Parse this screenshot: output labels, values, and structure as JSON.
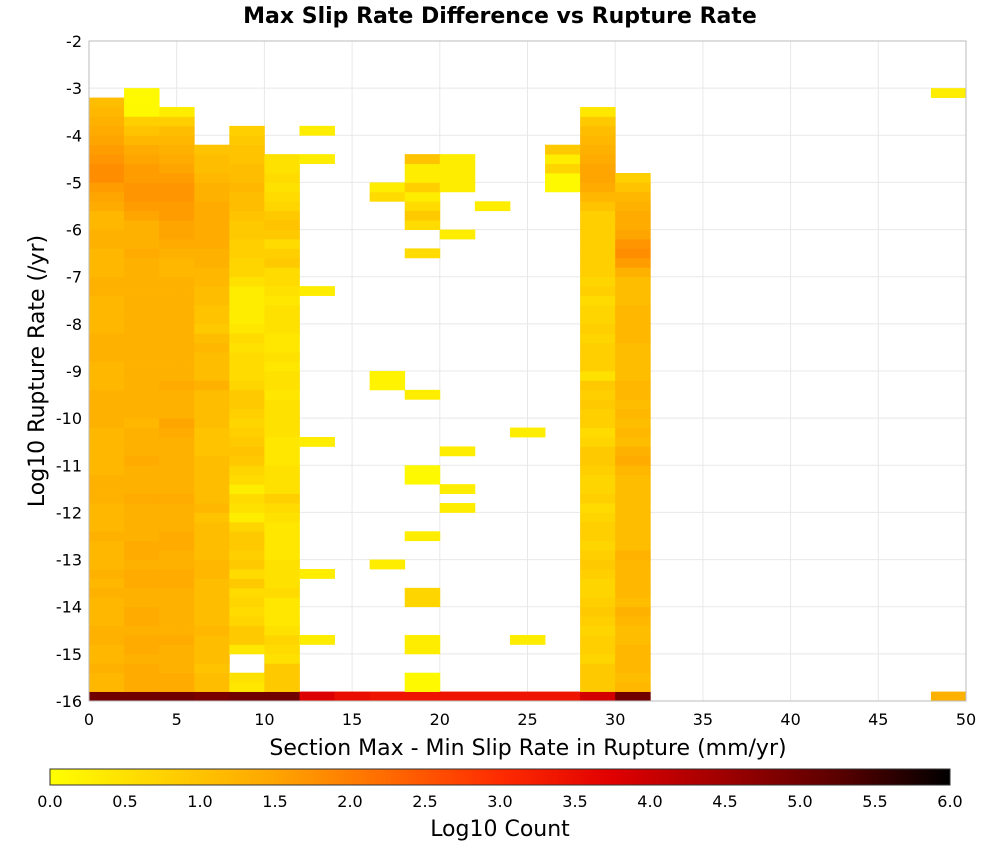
{
  "chart_data": {
    "type": "heatmap",
    "title": "Max Slip Rate Difference vs Rupture Rate",
    "xlabel": "Section Max - Min Slip Rate in Rupture (mm/yr)",
    "ylabel": "Log10 Rupture Rate (/yr)",
    "xlim": [
      0,
      50
    ],
    "ylim": [
      -16,
      -2
    ],
    "x_ticks": [
      0,
      5,
      10,
      15,
      20,
      25,
      30,
      35,
      40,
      45,
      50
    ],
    "y_ticks": [
      -2,
      -3,
      -4,
      -5,
      -6,
      -7,
      -8,
      -9,
      -10,
      -11,
      -12,
      -13,
      -14,
      -15,
      -16
    ],
    "grid": true,
    "bin_size_x": 2,
    "bin_size_y": 0.2,
    "colorbar": {
      "label": "Log10 Count",
      "range": [
        0,
        6
      ],
      "ticks": [
        "0.0",
        "0.5",
        "1.0",
        "1.5",
        "2.0",
        "2.5",
        "3.0",
        "3.5",
        "4.0",
        "4.5",
        "5.0",
        "5.5",
        "6.0"
      ],
      "colors": [
        "#ffff00",
        "#ffd200",
        "#ffa500",
        "#ff6a00",
        "#ff2b00",
        "#e00000",
        "#9e0000",
        "#5a0000",
        "#000000"
      ]
    },
    "columns": [
      {
        "x": 0,
        "ymin": -16,
        "values": [
          5.0,
          1.2,
          1.2,
          1.3,
          1.2,
          1.2,
          1.3,
          1.3,
          1.2,
          1.2,
          1.2,
          1.3,
          1.2,
          1.3,
          1.2,
          1.2,
          1.2,
          1.3,
          1.2,
          1.2,
          1.2,
          1.3,
          1.3,
          1.3,
          1.2,
          1.2,
          1.2,
          1.2,
          1.2,
          1.3,
          1.3,
          1.3,
          1.3,
          1.2,
          1.2,
          1.2,
          1.3,
          1.3,
          1.3,
          1.2,
          1.2,
          1.2,
          1.2,
          1.3,
          1.3,
          1.2,
          1.2,
          1.2,
          1.3,
          1.3,
          1.2,
          1.2,
          1.4,
          1.5,
          1.6,
          1.8,
          1.8,
          1.7,
          1.6,
          1.5,
          1.4,
          1.3,
          1.2,
          1.1
        ]
      },
      {
        "x": 2,
        "ymin": -16,
        "values": [
          5.0,
          1.4,
          1.4,
          1.4,
          1.3,
          1.4,
          1.4,
          1.3,
          1.4,
          1.4,
          1.3,
          1.3,
          1.4,
          1.4,
          1.3,
          1.4,
          1.4,
          1.3,
          1.3,
          1.3,
          1.3,
          1.4,
          1.3,
          1.3,
          1.3,
          1.4,
          1.3,
          1.3,
          1.3,
          1.2,
          1.3,
          1.3,
          1.3,
          1.3,
          1.3,
          1.3,
          1.3,
          1.3,
          1.3,
          1.3,
          1.3,
          1.3,
          1.3,
          1.3,
          1.3,
          1.3,
          1.3,
          1.4,
          1.3,
          1.3,
          1.3,
          1.5,
          1.6,
          1.7,
          1.7,
          1.6,
          1.6,
          1.5,
          1.4,
          1.2,
          1.0,
          0.8,
          0.1,
          0.1,
          0.1
        ]
      },
      {
        "x": 4,
        "ymin": -16,
        "values": [
          5.0,
          1.4,
          1.4,
          1.3,
          1.3,
          1.3,
          1.4,
          1.3,
          1.3,
          1.3,
          1.3,
          1.3,
          1.4,
          1.4,
          1.3,
          1.3,
          1.4,
          1.4,
          1.3,
          1.3,
          1.3,
          1.4,
          1.3,
          1.3,
          1.3,
          1.3,
          1.3,
          1.3,
          1.4,
          1.5,
          1.3,
          1.3,
          1.3,
          1.4,
          1.3,
          1.3,
          1.3,
          1.3,
          1.3,
          1.3,
          1.3,
          1.3,
          1.3,
          1.3,
          1.3,
          1.2,
          1.2,
          1.3,
          1.4,
          1.5,
          1.5,
          1.6,
          1.6,
          1.7,
          1.7,
          1.6,
          1.5,
          1.4,
          1.3,
          1.2,
          1.1,
          0.8,
          0.3
        ]
      },
      {
        "x": 6,
        "ymin": -16,
        "values": [
          4.9,
          1.1,
          1.1,
          1.0,
          1.1,
          1.1,
          1.1,
          1.2,
          1.1,
          1.1,
          1.1,
          1.1,
          1.1,
          1.2,
          1.2,
          1.1,
          1.1,
          1.1,
          1.1,
          1.0,
          1.2,
          1.1,
          1.1,
          1.1,
          1.1,
          1.1,
          1.0,
          1.0,
          1.0,
          1.1,
          1.1,
          1.1,
          1.1,
          1.3,
          1.1,
          1.1,
          1.1,
          1.2,
          1.1,
          0.9,
          1.0,
          1.0,
          1.1,
          1.1,
          1.2,
          1.2,
          1.3,
          1.3,
          1.4,
          1.4,
          1.4,
          1.4,
          1.4,
          1.3,
          1.3,
          1.2,
          1.1,
          1.1,
          1.0
        ]
      },
      {
        "x": 8,
        "ymin": -16,
        "values": [
          5.0,
          0.4,
          0.5,
          -1,
          -1,
          0.4,
          0.9,
          0.9,
          0.7,
          0.6,
          0.7,
          0.6,
          0.9,
          0.6,
          0.9,
          0.8,
          0.9,
          0.9,
          0.7,
          0.3,
          0.5,
          0.6,
          0.3,
          0.6,
          0.7,
          0.9,
          1.0,
          0.9,
          0.8,
          0.7,
          0.8,
          0.9,
          0.9,
          0.7,
          0.6,
          0.6,
          0.6,
          0.5,
          0.6,
          0.4,
          0.3,
          0.3,
          0.3,
          0.3,
          0.5,
          0.7,
          0.7,
          0.8,
          0.8,
          0.9,
          0.9,
          1.0,
          1.1,
          1.1,
          1.2,
          1.1,
          1.1,
          1.0,
          1.0,
          0.9,
          0.8
        ]
      },
      {
        "x": 10,
        "ymin": -16,
        "values": [
          5.0,
          0.9,
          0.9,
          0.9,
          0.5,
          0.6,
          0.7,
          0.5,
          0.4,
          0.4,
          0.4,
          0.6,
          0.5,
          0.5,
          0.5,
          0.4,
          0.4,
          0.4,
          0.4,
          0.5,
          0.6,
          0.8,
          0.5,
          0.5,
          0.5,
          0.4,
          0.4,
          0.4,
          0.5,
          0.5,
          0.5,
          0.5,
          0.4,
          0.5,
          0.5,
          0.4,
          0.5,
          0.4,
          0.4,
          0.5,
          0.5,
          0.5,
          0.4,
          0.5,
          0.6,
          0.6,
          0.9,
          0.8,
          0.6,
          0.9,
          1.0,
          0.9,
          0.7,
          0.6,
          0.5,
          0.6,
          0.5,
          0.5
        ]
      },
      {
        "x": 12,
        "ymin": -16,
        "values": [
          3.8,
          -1,
          -1,
          -1,
          -1,
          -1,
          0.3,
          -1,
          -1,
          -1,
          -1,
          -1,
          -1,
          0.3,
          -1,
          -1,
          -1,
          -1,
          -1,
          -1,
          -1,
          -1,
          -1,
          -1,
          -1,
          -1,
          -1,
          0.3,
          -1,
          -1,
          -1,
          -1,
          -1,
          -1,
          -1,
          -1,
          -1,
          -1,
          -1,
          -1,
          -1,
          -1,
          -1,
          0.3,
          -1,
          -1,
          -1,
          -1,
          -1,
          -1,
          -1,
          -1,
          -1,
          -1,
          -1,
          -1,
          -1,
          0.3,
          -1,
          -1,
          0.3
        ]
      },
      {
        "x": 14,
        "ymin": -16,
        "values": [
          3.5
        ]
      },
      {
        "x": 16,
        "ymin": -16,
        "values": [
          3.4,
          -1,
          -1,
          -1,
          -1,
          -1,
          -1,
          -1,
          -1,
          -1,
          -1,
          -1,
          -1,
          -1,
          0.3,
          -1,
          -1,
          -1,
          -1,
          -1,
          -1,
          -1,
          -1,
          -1,
          -1,
          -1,
          -1,
          -1,
          -1,
          -1,
          -1,
          -1,
          -1,
          0.2,
          0.2,
          -1,
          -1,
          -1,
          -1,
          -1,
          -1,
          -1,
          -1,
          -1,
          -1,
          -1,
          -1,
          -1,
          -1,
          -1,
          -1,
          -1,
          -1,
          0.6,
          0.3
        ]
      },
      {
        "x": 18,
        "ymin": -16,
        "values": [
          3.4,
          0.1,
          0.1,
          -1,
          -1,
          0.3,
          0.3,
          -1,
          -1,
          -1,
          0.7,
          0.7,
          -1,
          -1,
          -1,
          -1,
          -1,
          0.3,
          -1,
          -1,
          -1,
          -1,
          -1,
          0.1,
          0.1,
          -1,
          -1,
          -1,
          -1,
          -1,
          -1,
          -1,
          0.3,
          -1,
          -1,
          -1,
          -1,
          -1,
          -1,
          -1,
          -1,
          -1,
          -1,
          -1,
          -1,
          -1,
          -1,
          0.6,
          -1,
          -1,
          0.6,
          0.9,
          0.6,
          0.3,
          0.8,
          0.3,
          0.3,
          1.0
        ]
      },
      {
        "x": 20,
        "ymin": -16,
        "values": [
          3.4,
          -1,
          -1,
          -1,
          -1,
          -1,
          -1,
          -1,
          -1,
          -1,
          -1,
          -1,
          -1,
          -1,
          -1,
          -1,
          -1,
          -1,
          -1,
          -1,
          0.3,
          -1,
          0.3,
          -1,
          -1,
          -1,
          0.3,
          -1,
          -1,
          -1,
          -1,
          -1,
          -1,
          -1,
          -1,
          -1,
          -1,
          -1,
          -1,
          -1,
          -1,
          -1,
          -1,
          -1,
          -1,
          -1,
          -1,
          -1,
          -1,
          0.3,
          -1,
          -1,
          -1,
          -1,
          0.3,
          0.3,
          0.3,
          0.3
        ]
      },
      {
        "x": 22,
        "ymin": -16,
        "values": [
          3.4,
          -1,
          -1,
          -1,
          -1,
          -1,
          -1,
          -1,
          -1,
          -1,
          -1,
          -1,
          -1,
          -1,
          -1,
          -1,
          -1,
          -1,
          -1,
          -1,
          -1,
          -1,
          -1,
          -1,
          -1,
          -1,
          -1,
          -1,
          -1,
          -1,
          -1,
          -1,
          -1,
          -1,
          -1,
          -1,
          -1,
          -1,
          -1,
          -1,
          -1,
          -1,
          -1,
          -1,
          -1,
          -1,
          -1,
          -1,
          -1,
          -1,
          -1,
          -1,
          0.3
        ]
      },
      {
        "x": 24,
        "ymin": -16,
        "values": [
          3.4,
          -1,
          -1,
          -1,
          -1,
          -1,
          0.3,
          -1,
          -1,
          -1,
          -1,
          -1,
          -1,
          -1,
          -1,
          -1,
          -1,
          -1,
          -1,
          -1,
          -1,
          -1,
          -1,
          -1,
          -1,
          -1,
          -1,
          -1,
          0.3
        ]
      },
      {
        "x": 26,
        "ymin": -16,
        "values": [
          3.4,
          -1,
          -1,
          -1,
          -1,
          -1,
          -1,
          -1,
          -1,
          -1,
          -1,
          -1,
          -1,
          -1,
          -1,
          -1,
          -1,
          -1,
          -1,
          -1,
          -1,
          -1,
          -1,
          -1,
          -1,
          -1,
          -1,
          -1,
          -1,
          -1,
          -1,
          -1,
          -1,
          -1,
          -1,
          -1,
          -1,
          -1,
          -1,
          -1,
          -1,
          -1,
          -1,
          -1,
          -1,
          -1,
          -1,
          -1,
          -1,
          -1,
          -1,
          -1,
          -1,
          -1,
          0.1,
          0.1,
          0.7,
          0.3,
          0.9
        ]
      },
      {
        "x": 28,
        "ymin": -16,
        "values": [
          3.9,
          0.9,
          0.9,
          0.9,
          0.7,
          0.8,
          0.8,
          0.7,
          0.8,
          0.9,
          0.8,
          0.7,
          0.7,
          0.8,
          0.9,
          0.8,
          0.7,
          0.8,
          0.8,
          0.7,
          0.6,
          0.8,
          0.7,
          0.7,
          0.8,
          0.9,
          0.9,
          0.7,
          0.6,
          0.8,
          0.8,
          0.9,
          0.8,
          0.9,
          0.5,
          0.8,
          0.8,
          0.8,
          0.7,
          0.8,
          0.7,
          0.7,
          0.6,
          0.8,
          0.7,
          0.8,
          0.8,
          0.8,
          0.8,
          0.8,
          0.8,
          0.8,
          1.0,
          1.2,
          1.4,
          1.5,
          1.5,
          1.4,
          1.3,
          1.2,
          1.1,
          0.9,
          0.4
        ]
      },
      {
        "x": 30,
        "ymin": -16,
        "values": [
          5.0,
          1.2,
          1.1,
          1.2,
          1.2,
          1.2,
          1.1,
          1.1,
          1.2,
          1.3,
          1.1,
          1.2,
          1.2,
          1.2,
          1.2,
          1.3,
          1.1,
          1.1,
          1.1,
          1.1,
          1.1,
          1.1,
          1.1,
          1.1,
          1.2,
          1.4,
          1.3,
          1.1,
          1.2,
          1.1,
          1.2,
          1.1,
          1.2,
          1.2,
          1.1,
          1.1,
          1.1,
          1.1,
          1.2,
          1.2,
          1.2,
          1.2,
          1.1,
          1.1,
          1.1,
          1.3,
          1.6,
          1.8,
          1.7,
          1.5,
          1.4,
          1.4,
          1.3,
          1.2,
          1.0,
          0.8
        ]
      },
      {
        "x": 48,
        "ymin": -16,
        "values": [
          1.3,
          -1,
          -1,
          -1,
          -1,
          -1,
          -1,
          -1,
          -1,
          -1,
          -1,
          -1,
          -1,
          -1,
          -1,
          -1,
          -1,
          -1,
          -1,
          -1,
          -1,
          -1,
          -1,
          -1,
          -1,
          -1,
          -1,
          -1,
          -1,
          -1,
          -1,
          -1,
          -1,
          -1,
          -1,
          -1,
          -1,
          -1,
          -1,
          -1,
          -1,
          -1,
          -1,
          -1,
          -1,
          -1,
          -1,
          -1,
          -1,
          -1,
          -1,
          -1,
          -1,
          -1,
          -1,
          -1,
          -1,
          -1,
          -1,
          -1,
          -1,
          -1,
          -1,
          -1,
          0.3
        ]
      }
    ]
  }
}
